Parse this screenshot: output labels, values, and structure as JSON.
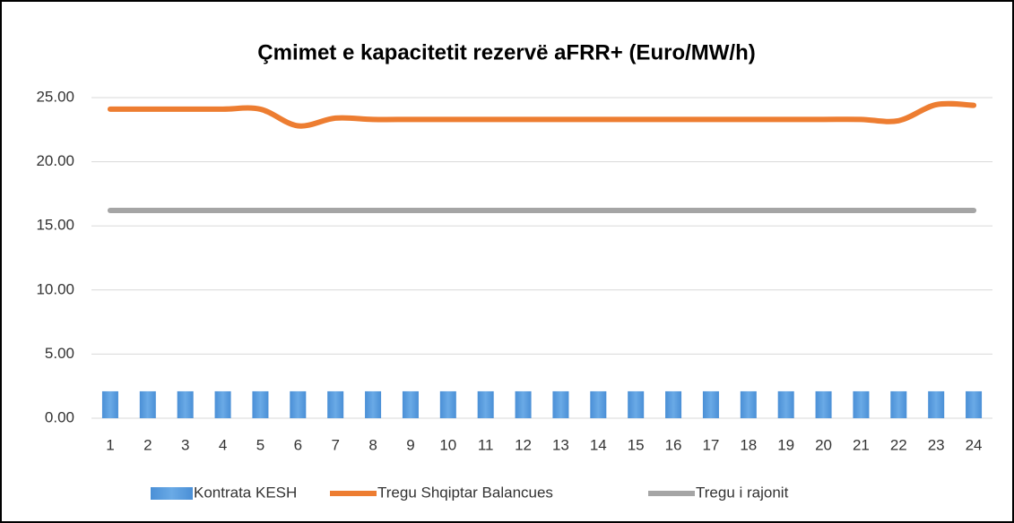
{
  "chart_data": {
    "type": "bar",
    "title": "Çmimet e kapacitetit rezervë aFRR+ (Euro/MW/h)",
    "categories": [
      "1",
      "2",
      "3",
      "4",
      "5",
      "6",
      "7",
      "8",
      "9",
      "10",
      "11",
      "12",
      "13",
      "14",
      "15",
      "16",
      "17",
      "18",
      "19",
      "20",
      "21",
      "22",
      "23",
      "24"
    ],
    "series": [
      {
        "name": "Kontrata KESH",
        "type": "bar",
        "color": "#5b9bd5",
        "values": [
          2.1,
          2.1,
          2.1,
          2.1,
          2.1,
          2.1,
          2.1,
          2.1,
          2.1,
          2.1,
          2.1,
          2.1,
          2.1,
          2.1,
          2.1,
          2.1,
          2.1,
          2.1,
          2.1,
          2.1,
          2.1,
          2.1,
          2.1,
          2.1
        ]
      },
      {
        "name": "Tregu Shqiptar Balancues",
        "type": "line",
        "color": "#ed7d31",
        "values": [
          24.1,
          24.1,
          24.1,
          24.1,
          24.1,
          22.8,
          23.4,
          23.3,
          23.3,
          23.3,
          23.3,
          23.3,
          23.3,
          23.3,
          23.3,
          23.3,
          23.3,
          23.3,
          23.3,
          23.3,
          23.3,
          23.2,
          24.45,
          24.4
        ]
      },
      {
        "name": "Tregu i rajonit",
        "type": "line",
        "color": "#a5a5a5",
        "values": [
          16.2,
          16.2,
          16.2,
          16.2,
          16.2,
          16.2,
          16.2,
          16.2,
          16.2,
          16.2,
          16.2,
          16.2,
          16.2,
          16.2,
          16.2,
          16.2,
          16.2,
          16.2,
          16.2,
          16.2,
          16.2,
          16.2,
          16.2,
          16.2
        ]
      }
    ],
    "ylim": [
      0,
      25
    ],
    "yticks": [
      {
        "value": 0,
        "label": "0.00"
      },
      {
        "value": 5,
        "label": "5.00"
      },
      {
        "value": 10,
        "label": "10.00"
      },
      {
        "value": 15,
        "label": "15.00"
      },
      {
        "value": 20,
        "label": "20.00"
      },
      {
        "value": 25,
        "label": "25.00"
      }
    ],
    "grid": true,
    "legend": "bottom"
  }
}
